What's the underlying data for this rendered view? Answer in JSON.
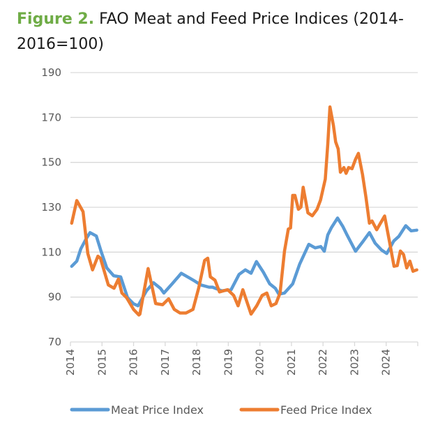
{
  "title": {
    "figure_label": "Figure 2.",
    "text": "FAO Meat and Feed Price Indices (2014-2016=100)"
  },
  "colors": {
    "title_accent": "#6FAC46",
    "meat": "#5B9BD5",
    "feed": "#ED7D31",
    "grid": "#D9D9D9",
    "tick_text": "#595959"
  },
  "chart_data": {
    "type": "line",
    "title": "FAO Meat and Feed Price Indices (2014-2016=100)",
    "xlabel": "",
    "ylabel": "",
    "xlim": [
      2014,
      2025
    ],
    "ylim": [
      70,
      190
    ],
    "yticks": [
      70,
      90,
      110,
      130,
      150,
      170,
      190
    ],
    "xticks": [
      "2014",
      "2015",
      "2016",
      "2017",
      "2018",
      "2019",
      "2020",
      "2021",
      "2022",
      "2023",
      "2024"
    ],
    "grid": true,
    "legend_position": "bottom",
    "series": [
      {
        "name": "Meat Price Index",
        "color": "#5B9BD5",
        "points": [
          [
            2014.04,
            103.7
          ],
          [
            2014.2,
            106
          ],
          [
            2014.33,
            111.5
          ],
          [
            2014.5,
            116
          ],
          [
            2014.62,
            118.7
          ],
          [
            2014.82,
            117.2
          ],
          [
            2014.97,
            110.4
          ],
          [
            2015.15,
            103
          ],
          [
            2015.37,
            99.5
          ],
          [
            2015.5,
            99.2
          ],
          [
            2015.59,
            99
          ],
          [
            2015.81,
            89.7
          ],
          [
            2016.0,
            87
          ],
          [
            2016.14,
            86.1
          ],
          [
            2016.41,
            92.8
          ],
          [
            2016.63,
            96.4
          ],
          [
            2016.85,
            93.9
          ],
          [
            2016.96,
            91.8
          ],
          [
            2017.22,
            95.9
          ],
          [
            2017.51,
            100.6
          ],
          [
            2017.77,
            98.5
          ],
          [
            2017.95,
            97
          ],
          [
            2018.13,
            95.4
          ],
          [
            2018.39,
            94.4
          ],
          [
            2018.5,
            94.4
          ],
          [
            2018.79,
            92.8
          ],
          [
            2019.09,
            93.3
          ],
          [
            2019.34,
            100.1
          ],
          [
            2019.54,
            102.1
          ],
          [
            2019.72,
            100.6
          ],
          [
            2019.89,
            105.8
          ],
          [
            2020.11,
            101.1
          ],
          [
            2020.31,
            95.9
          ],
          [
            2020.49,
            93.9
          ],
          [
            2020.6,
            91.3
          ],
          [
            2020.78,
            91.8
          ],
          [
            2021.04,
            95.9
          ],
          [
            2021.26,
            104.7
          ],
          [
            2021.55,
            113.5
          ],
          [
            2021.75,
            111.9
          ],
          [
            2021.93,
            112.5
          ],
          [
            2022.04,
            110.4
          ],
          [
            2022.15,
            117.7
          ],
          [
            2022.26,
            120.8
          ],
          [
            2022.46,
            125.2
          ],
          [
            2022.63,
            121.4
          ],
          [
            2022.76,
            117.7
          ],
          [
            2023.03,
            110.4
          ],
          [
            2023.25,
            114.5
          ],
          [
            2023.47,
            118.7
          ],
          [
            2023.65,
            114
          ],
          [
            2023.85,
            111
          ],
          [
            2024.02,
            109.4
          ],
          [
            2024.24,
            115
          ],
          [
            2024.4,
            117
          ],
          [
            2024.62,
            121.8
          ],
          [
            2024.79,
            119.5
          ],
          [
            2024.97,
            119.8
          ]
        ]
      },
      {
        "name": "Feed Price Index",
        "color": "#ED7D31",
        "points": [
          [
            2014.04,
            122.9
          ],
          [
            2014.2,
            133
          ],
          [
            2014.4,
            128
          ],
          [
            2014.55,
            109.4
          ],
          [
            2014.7,
            102.1
          ],
          [
            2014.87,
            108.2
          ],
          [
            2014.95,
            107.3
          ],
          [
            2015.2,
            95.4
          ],
          [
            2015.38,
            93.9
          ],
          [
            2015.52,
            98
          ],
          [
            2015.63,
            91.8
          ],
          [
            2015.78,
            89.7
          ],
          [
            2016.0,
            84.5
          ],
          [
            2016.17,
            82
          ],
          [
            2016.2,
            82.4
          ],
          [
            2016.46,
            102.7
          ],
          [
            2016.7,
            87.1
          ],
          [
            2016.92,
            86.6
          ],
          [
            2017.11,
            89.2
          ],
          [
            2017.29,
            84.5
          ],
          [
            2017.47,
            82.9
          ],
          [
            2017.66,
            82.9
          ],
          [
            2017.88,
            84.5
          ],
          [
            2018.06,
            93.9
          ],
          [
            2018.25,
            106.3
          ],
          [
            2018.35,
            107.3
          ],
          [
            2018.43,
            99
          ],
          [
            2018.58,
            97.5
          ],
          [
            2018.72,
            92.3
          ],
          [
            2018.98,
            93.3
          ],
          [
            2019.17,
            90.7
          ],
          [
            2019.31,
            86.1
          ],
          [
            2019.46,
            93.3
          ],
          [
            2019.72,
            82.4
          ],
          [
            2019.9,
            86.1
          ],
          [
            2020.07,
            90.7
          ],
          [
            2020.22,
            91.8
          ],
          [
            2020.36,
            86.1
          ],
          [
            2020.51,
            87.1
          ],
          [
            2020.64,
            91.8
          ],
          [
            2020.78,
            110.4
          ],
          [
            2020.9,
            120.3
          ],
          [
            2020.97,
            120.8
          ],
          [
            2021.04,
            135.3
          ],
          [
            2021.11,
            135.3
          ],
          [
            2021.22,
            129.1
          ],
          [
            2021.3,
            130.1
          ],
          [
            2021.37,
            138.9
          ],
          [
            2021.52,
            127.5
          ],
          [
            2021.66,
            126.2
          ],
          [
            2021.81,
            129.1
          ],
          [
            2021.92,
            133.2
          ],
          [
            2022.07,
            142.5
          ],
          [
            2022.15,
            158.1
          ],
          [
            2022.22,
            174.7
          ],
          [
            2022.33,
            166.4
          ],
          [
            2022.4,
            159.1
          ],
          [
            2022.48,
            156
          ],
          [
            2022.55,
            145.6
          ],
          [
            2022.66,
            147.7
          ],
          [
            2022.73,
            145.1
          ],
          [
            2022.81,
            147.7
          ],
          [
            2022.92,
            147.2
          ],
          [
            2023.03,
            151.4
          ],
          [
            2023.12,
            154
          ],
          [
            2023.25,
            144.6
          ],
          [
            2023.36,
            134.3
          ],
          [
            2023.47,
            122.9
          ],
          [
            2023.55,
            123.9
          ],
          [
            2023.7,
            120
          ],
          [
            2023.95,
            126.1
          ],
          [
            2024.1,
            115
          ],
          [
            2024.25,
            103.7
          ],
          [
            2024.35,
            104
          ],
          [
            2024.45,
            110.5
          ],
          [
            2024.55,
            109
          ],
          [
            2024.65,
            103
          ],
          [
            2024.75,
            106
          ],
          [
            2024.85,
            101.5
          ],
          [
            2024.97,
            102.1
          ]
        ]
      }
    ]
  },
  "legend": [
    {
      "label": "Meat Price Index",
      "color": "#5B9BD5"
    },
    {
      "label": "Feed Price Index",
      "color": "#ED7D31"
    }
  ]
}
